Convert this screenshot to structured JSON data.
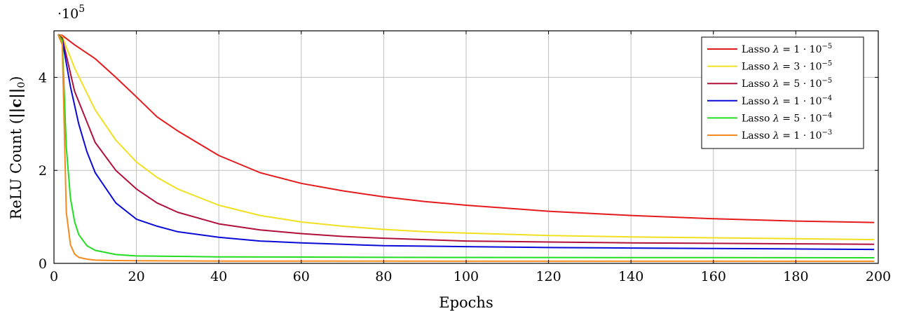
{
  "chart_data": {
    "type": "line",
    "xlabel": "Epochs",
    "ylabel_prefix": "ReLU Count (",
    "ylabel_math": "||c||",
    "ylabel_sub": "0",
    "ylabel_suffix": ")",
    "y_multiplier": "·10",
    "y_multiplier_exp": "5",
    "xlim": [
      0,
      200
    ],
    "ylim": [
      0,
      500000
    ],
    "x_ticks": [
      0,
      20,
      40,
      60,
      80,
      100,
      120,
      140,
      160,
      180,
      200
    ],
    "y_ticks": [
      0,
      200000,
      400000
    ],
    "y_tick_labels": [
      "0",
      "2",
      "4"
    ],
    "grid": true,
    "legend_position": "top-right",
    "series": [
      {
        "label_prefix": "Lasso ",
        "label_lambda": "λ = 1 · 10",
        "label_exp": "−5",
        "color": "#e41a1c",
        "x": [
          1,
          2,
          5,
          10,
          15,
          20,
          25,
          30,
          40,
          50,
          60,
          70,
          80,
          90,
          100,
          120,
          140,
          160,
          180,
          199
        ],
        "y": [
          492000,
          490000,
          470000,
          440000,
          400000,
          358000,
          315000,
          285000,
          232000,
          195000,
          172000,
          156000,
          143000,
          133000,
          125000,
          112000,
          103000,
          96000,
          91000,
          88000
        ]
      },
      {
        "label_prefix": "Lasso ",
        "label_lambda": "λ = 3 · 10",
        "label_exp": "−5",
        "color": "#f0e020",
        "x": [
          1,
          2,
          5,
          10,
          15,
          20,
          25,
          30,
          40,
          50,
          60,
          70,
          80,
          90,
          100,
          120,
          140,
          160,
          180,
          199
        ],
        "y": [
          492000,
          488000,
          420000,
          330000,
          265000,
          218000,
          185000,
          160000,
          125000,
          103000,
          89000,
          80000,
          73000,
          68000,
          65000,
          60000,
          57000,
          55000,
          53000,
          51000
        ]
      },
      {
        "label_prefix": "Lasso ",
        "label_lambda": "λ = 5 · 10",
        "label_exp": "−5",
        "color": "#b0103a",
        "x": [
          1,
          2,
          5,
          10,
          15,
          20,
          25,
          30,
          40,
          50,
          60,
          70,
          80,
          90,
          100,
          120,
          140,
          160,
          180,
          199
        ],
        "y": [
          492000,
          485000,
          370000,
          260000,
          200000,
          160000,
          130000,
          110000,
          85000,
          72000,
          64000,
          58000,
          54000,
          51000,
          48000,
          46000,
          44000,
          43000,
          42000,
          41000
        ]
      },
      {
        "label_prefix": "Lasso ",
        "label_lambda": "λ = 1 · 10",
        "label_exp": "−4",
        "color": "#0a0ad8",
        "x": [
          1,
          2,
          4,
          6,
          8,
          10,
          15,
          20,
          25,
          30,
          40,
          50,
          60,
          70,
          80,
          100,
          120,
          140,
          160,
          180,
          199
        ],
        "y": [
          492000,
          480000,
          380000,
          300000,
          240000,
          195000,
          130000,
          95000,
          80000,
          68000,
          56000,
          48000,
          44000,
          41000,
          38000,
          36000,
          34000,
          33000,
          32000,
          31000,
          30000
        ]
      },
      {
        "label_prefix": "Lasso ",
        "label_lambda": "λ = 5 · 10",
        "label_exp": "−4",
        "color": "#22dd22",
        "x": [
          1,
          2,
          3,
          4,
          5,
          6,
          8,
          10,
          15,
          20,
          30,
          40,
          60,
          80,
          100,
          120,
          140,
          160,
          180,
          199
        ],
        "y": [
          492000,
          480000,
          250000,
          140000,
          90000,
          62000,
          38000,
          28000,
          19000,
          16000,
          15000,
          14000,
          13500,
          13000,
          12800,
          12600,
          12400,
          12300,
          12200,
          12000
        ]
      },
      {
        "label_prefix": "Lasso ",
        "label_lambda": "λ = 1 · 10",
        "label_exp": "−3",
        "color": "#f58a1e",
        "x": [
          1,
          2,
          3,
          4,
          5,
          6,
          8,
          10,
          15,
          20,
          30,
          40,
          60,
          80,
          100,
          120,
          140,
          160,
          180,
          199
        ],
        "y": [
          492000,
          470000,
          110000,
          40000,
          20000,
          13000,
          9000,
          7000,
          6000,
          5500,
          5200,
          5000,
          4900,
          4800,
          4700,
          4700,
          4600,
          4600,
          4500,
          4500
        ]
      }
    ]
  }
}
